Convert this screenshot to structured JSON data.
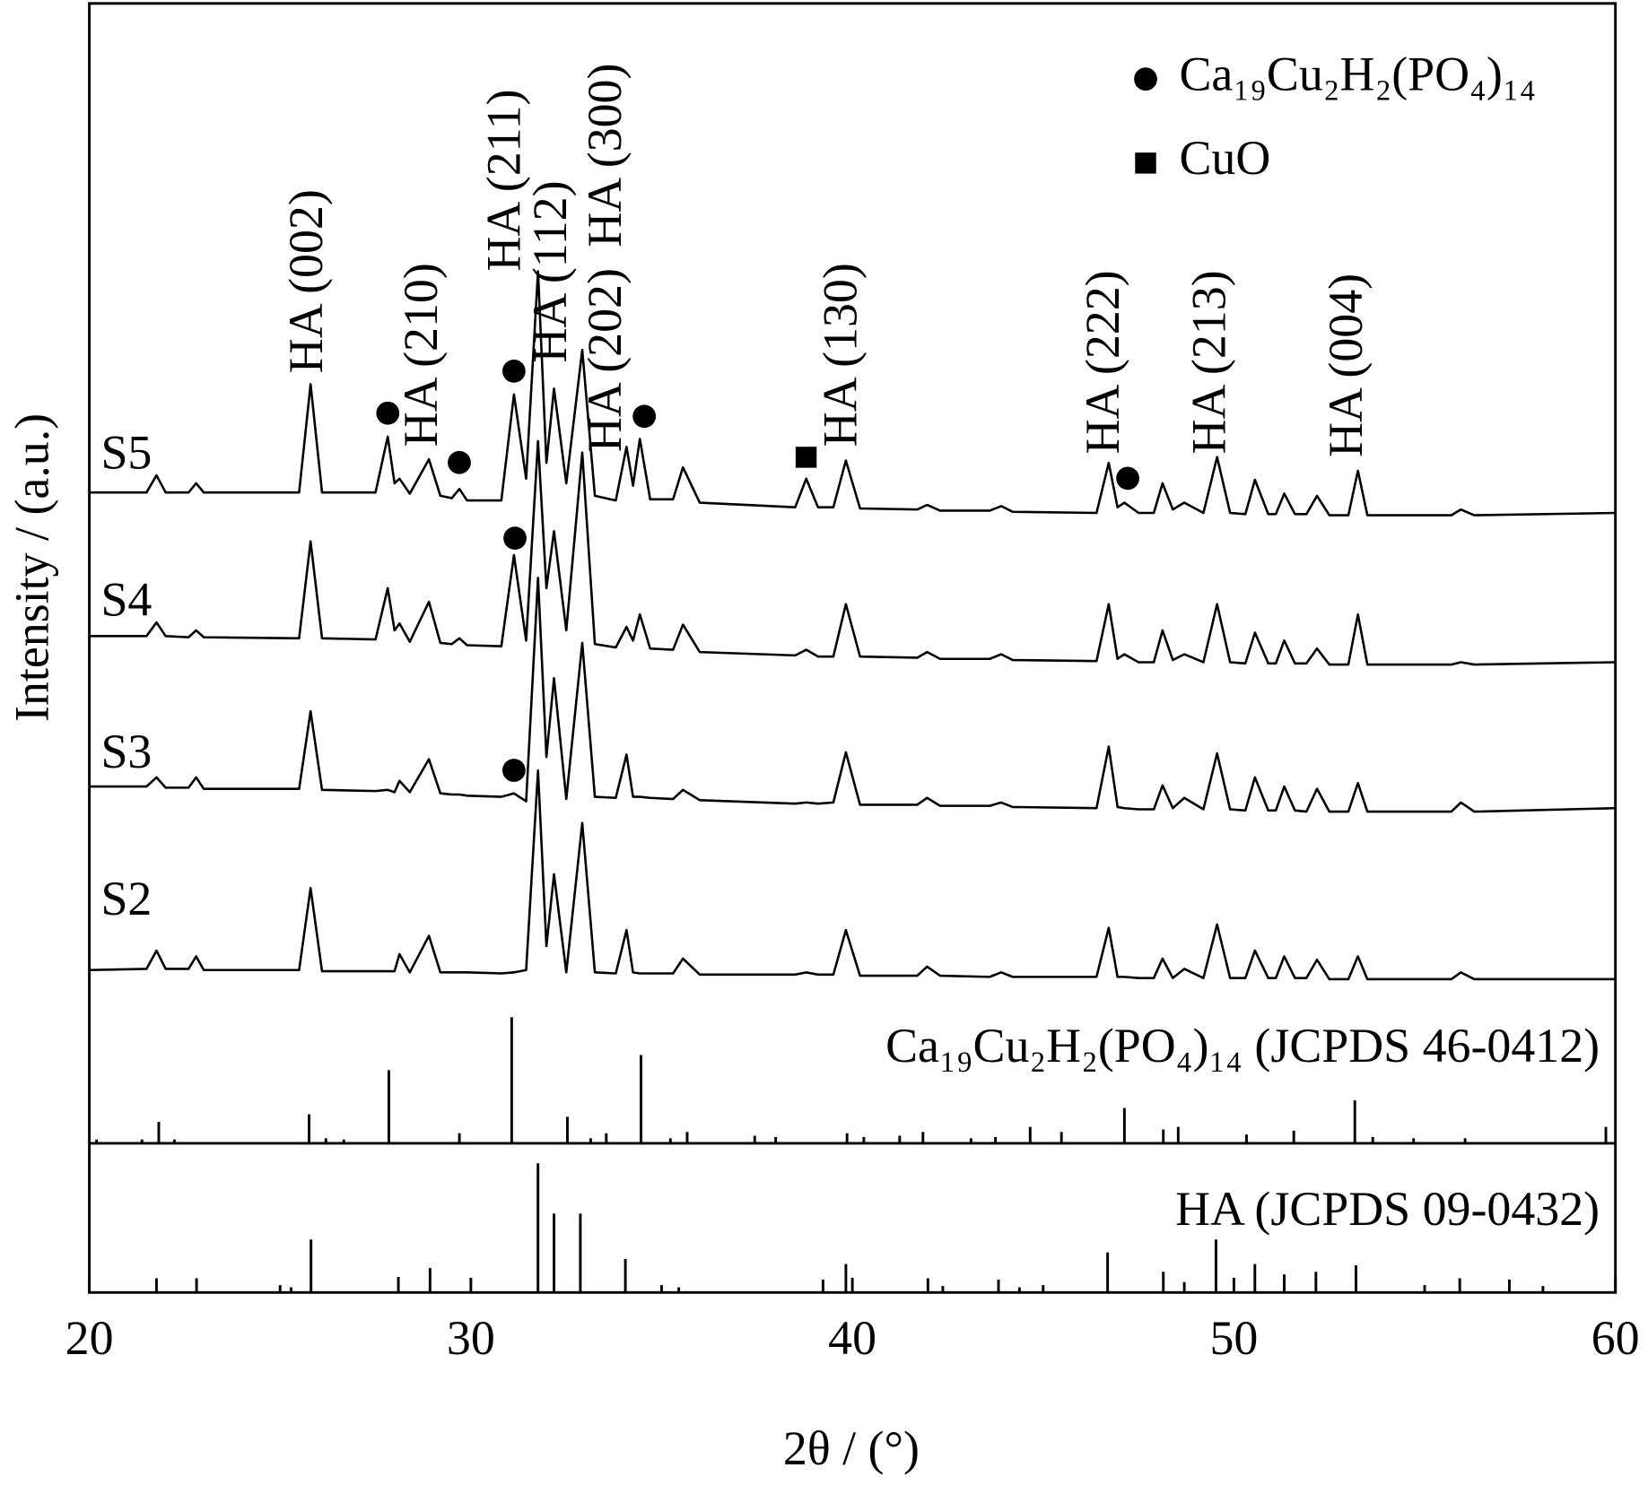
{
  "chart_data": [
    {
      "type": "line",
      "ylabel": "Intensity / (a.u.)",
      "xlim": [
        20,
        60
      ],
      "ylim": [
        0,
        100
      ],
      "x": [
        20,
        21.5,
        21.76,
        22.0,
        22.6,
        22.8,
        23.0,
        25.5,
        25.8,
        26.1,
        27.5,
        27.82,
        28.0,
        28.13,
        28.4,
        28.9,
        29.2,
        29.5,
        29.7,
        29.9,
        30.8,
        31.13,
        31.45,
        31.76,
        31.98,
        32.18,
        32.5,
        32.92,
        33.25,
        33.8,
        34.08,
        34.25,
        34.43,
        34.7,
        35.3,
        35.56,
        36.0,
        38.5,
        38.79,
        39.1,
        39.5,
        39.83,
        40.2,
        41.7,
        41.96,
        42.3,
        43.6,
        43.9,
        44.2,
        46.4,
        46.72,
        46.95,
        47.13,
        47.5,
        47.9,
        48.13,
        48.4,
        48.7,
        49.2,
        49.56,
        49.9,
        50.3,
        50.55,
        50.9,
        51.1,
        51.32,
        51.6,
        51.9,
        52.18,
        52.5,
        53.0,
        53.25,
        53.5,
        55.7,
        55.95,
        56.3,
        60
      ],
      "series": [
        {
          "name": "S2",
          "color": "#000000",
          "values": [
            15.2,
            15.3,
            16.9,
            15.3,
            15.3,
            16.4,
            15.2,
            15.2,
            22.4,
            15.1,
            15.1,
            15.1,
            15.1,
            16.6,
            15.0,
            18.2,
            15.0,
            15.0,
            15.0,
            15.0,
            14.9,
            15.0,
            15.2,
            32.7,
            17.3,
            23.6,
            15.0,
            28.1,
            15.0,
            14.9,
            18.7,
            15.0,
            14.9,
            14.9,
            14.9,
            16.2,
            14.8,
            14.8,
            15.0,
            14.8,
            14.8,
            18.7,
            14.7,
            14.7,
            15.5,
            14.7,
            14.6,
            15.0,
            14.6,
            14.6,
            18.9,
            14.6,
            14.6,
            14.5,
            14.5,
            16.2,
            14.5,
            15.3,
            14.5,
            19.2,
            14.5,
            14.5,
            16.9,
            14.5,
            14.5,
            16.4,
            14.5,
            14.5,
            16.1,
            14.4,
            14.4,
            16.4,
            14.4,
            14.4,
            15.0,
            14.4,
            14.4
          ]
        },
        {
          "name": "S3",
          "color": "#000000",
          "values": [
            31.3,
            31.3,
            32.1,
            31.2,
            31.2,
            32.1,
            31.1,
            31.1,
            37.9,
            31.0,
            30.9,
            31.0,
            30.8,
            31.8,
            30.8,
            33.7,
            30.7,
            30.6,
            30.6,
            30.5,
            30.4,
            30.7,
            30.0,
            49.6,
            33.9,
            40.8,
            30.2,
            43.9,
            30.4,
            30.3,
            34.1,
            30.4,
            30.4,
            30.3,
            30.2,
            31.0,
            30.1,
            29.8,
            29.9,
            29.8,
            29.9,
            34.3,
            29.7,
            29.7,
            30.3,
            29.6,
            29.6,
            29.9,
            29.5,
            29.4,
            34.8,
            29.5,
            29.4,
            29.3,
            29.3,
            31.4,
            29.4,
            30.3,
            29.3,
            34.2,
            29.3,
            29.2,
            32.1,
            29.2,
            29.2,
            31.3,
            29.2,
            29.1,
            31.1,
            29.1,
            29.1,
            31.6,
            29.1,
            29.1,
            29.9,
            29.1,
            29.4
          ]
        },
        {
          "name": "S4",
          "color": "#000000",
          "values": [
            44.5,
            44.5,
            45.7,
            44.5,
            44.4,
            45.0,
            44.4,
            44.3,
            52.8,
            44.3,
            44.2,
            48.7,
            45.0,
            45.6,
            44.0,
            47.5,
            43.9,
            43.8,
            44.3,
            43.7,
            43.6,
            51.6,
            44.1,
            61.6,
            48.7,
            53.7,
            45.0,
            60.6,
            43.8,
            43.5,
            45.3,
            44.1,
            46.4,
            43.4,
            43.3,
            45.5,
            43.1,
            42.8,
            43.3,
            42.7,
            42.7,
            47.3,
            42.7,
            42.6,
            43.1,
            42.5,
            42.5,
            42.9,
            42.4,
            42.3,
            47.3,
            42.5,
            42.9,
            42.2,
            42.2,
            45.0,
            42.4,
            42.9,
            42.2,
            47.3,
            42.2,
            42.1,
            44.8,
            42.1,
            42.1,
            44.1,
            42.1,
            42.1,
            43.4,
            42.0,
            42.0,
            46.4,
            42.0,
            42.0,
            42.2,
            42.0,
            42.2
          ]
        },
        {
          "name": "S5",
          "color": "#000000",
          "values": [
            57.1,
            57.1,
            58.6,
            57.1,
            57.1,
            57.9,
            57.1,
            57.1,
            66.6,
            57.1,
            57.1,
            62.0,
            57.9,
            58.3,
            57.0,
            60.0,
            56.8,
            56.6,
            57.4,
            56.4,
            56.4,
            65.7,
            58.3,
            76.5,
            59.7,
            66.2,
            57.9,
            69.6,
            56.8,
            56.4,
            61.1,
            57.7,
            61.8,
            56.5,
            56.5,
            59.3,
            56.2,
            55.8,
            58.3,
            55.8,
            55.8,
            59.9,
            55.7,
            55.6,
            56.0,
            55.5,
            55.5,
            55.9,
            55.4,
            55.3,
            59.7,
            55.8,
            56.2,
            55.3,
            55.3,
            57.9,
            55.6,
            56.2,
            55.3,
            60.2,
            55.3,
            55.2,
            58.2,
            55.2,
            55.2,
            57.0,
            55.2,
            55.2,
            56.8,
            55.1,
            55.1,
            59.0,
            55.1,
            55.1,
            55.6,
            55.1,
            55.3
          ]
        }
      ],
      "annotations": [
        "HA (002)",
        "HA (210)",
        "HA (211)",
        "HA (112)",
        "HA (300)",
        "HA (202)",
        "HA (130)",
        "HA (222)",
        "HA (213)",
        "HA (004)"
      ],
      "legend": [
        {
          "marker": "circle",
          "label": "Ca₁₉Cu₂H₂(PO₄)₁₄"
        },
        {
          "marker": "square",
          "label": "CuO"
        }
      ]
    },
    {
      "type": "stem",
      "title": "Ca₁₉Cu₂H₂(PO₄)₁₄ (JCPDS 46-0412)",
      "color": "#000000",
      "xlim": [
        20,
        60
      ],
      "ylim": [
        0,
        100
      ],
      "x": [
        20.19,
        21.38,
        21.82,
        22.23,
        25.76,
        26.2,
        26.67,
        27.85,
        29.7,
        31.07,
        32.53,
        33.14,
        33.55,
        34.46,
        35.23,
        35.67,
        37.44,
        37.99,
        39.86,
        40.3,
        41.24,
        41.85,
        43.11,
        43.75,
        44.66,
        45.48,
        47.13,
        48.15,
        48.54,
        50.33,
        51.57,
        53.17,
        53.64,
        54.71,
        56.06,
        59.75
      ],
      "values": [
        3,
        3,
        17,
        3,
        23,
        4,
        3,
        58,
        8,
        100,
        21,
        4,
        8,
        70,
        4,
        9,
        6,
        5,
        8,
        5,
        6,
        9,
        4,
        5,
        13,
        9,
        28,
        11,
        13,
        7,
        10,
        34,
        5,
        4,
        4,
        13
      ]
    },
    {
      "type": "stem",
      "title": "HA (JCPDS 09-0432)",
      "color": "#000000",
      "xlim": [
        20,
        60
      ],
      "ylim": [
        0,
        100
      ],
      "xlabel": "2θ / (°)",
      "xticks": [
        20,
        30,
        40,
        50,
        60
      ],
      "xminorticks": [
        25,
        35,
        45,
        55
      ],
      "x": [
        21.76,
        22.81,
        25.29,
        25.81,
        28.1,
        28.93,
        31.76,
        32.18,
        32.87,
        34.05,
        35.45,
        39.23,
        39.83,
        41.98,
        42.37,
        43.83,
        44.38,
        46.69,
        48.15,
        48.7,
        49.53,
        50.55,
        51.32,
        52.15,
        53.2,
        55.92,
        57.22,
        58.1
      ],
      "values": [
        11,
        11,
        4,
        41,
        12,
        19,
        100,
        61,
        61,
        26,
        4,
        10,
        22,
        11,
        5,
        10,
        4,
        31,
        16,
        8,
        41,
        22,
        14,
        16,
        21,
        11,
        10,
        5
      ]
    }
  ]
}
